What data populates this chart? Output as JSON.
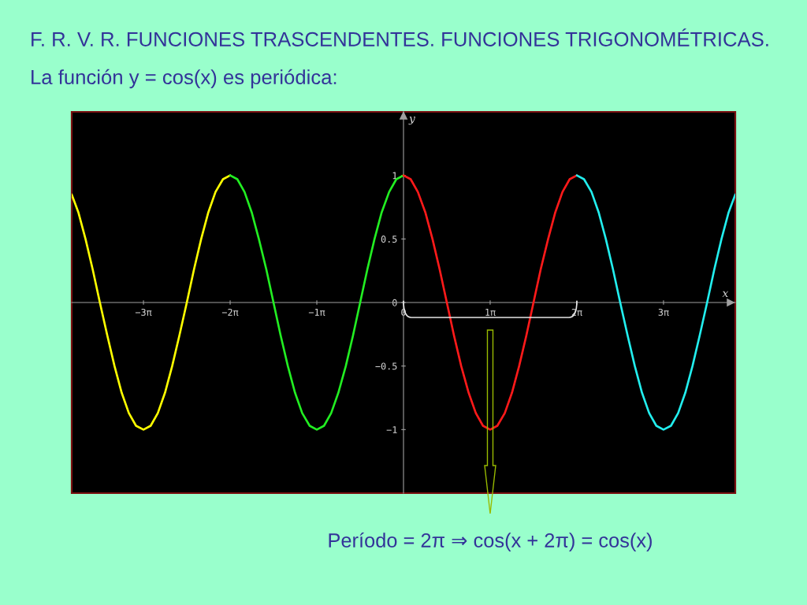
{
  "chart_data": {
    "type": "line",
    "title": "F. R. V. R. FUNCIONES TRASCENDENTES. FUNCIONES TRIGONOMÉTRICAS.",
    "subtitle": "La función y = cos(x) es periódica:",
    "xlabel": "x",
    "ylabel": "y",
    "annotations": [
      "Período = 2π ⇒ cos(x + 2π) = cos(x)"
    ],
    "series": [
      {
        "color": "#ffff00",
        "x": [
          -12.02,
          -11.78,
          -11.52,
          -11.26,
          -11.0,
          -10.73,
          -10.47,
          -10.21,
          -9.95,
          -9.69,
          -9.42,
          -9.16,
          -8.9,
          -8.64,
          -8.38,
          -8.12,
          -7.85,
          -7.59,
          -7.33,
          -7.07,
          -6.81,
          -6.54,
          -6.28
        ],
        "values": [
          0.85,
          0.71,
          0.5,
          0.26,
          0,
          -0.26,
          -0.5,
          -0.71,
          -0.87,
          -0.97,
          -1,
          -0.97,
          -0.87,
          -0.71,
          -0.5,
          -0.26,
          0,
          0.26,
          0.5,
          0.71,
          0.87,
          0.97,
          1
        ]
      },
      {
        "color": "#22ee22",
        "x": [
          -6.28,
          -6.02,
          -5.76,
          -5.5,
          -5.24,
          -4.97,
          -4.71,
          -4.45,
          -4.19,
          -3.93,
          -3.67,
          -3.4,
          -3.14,
          -2.88,
          -2.62,
          -2.36,
          -2.09,
          -1.83,
          -1.57,
          -1.31,
          -1.05,
          -0.79,
          -0.52,
          -0.26,
          0
        ],
        "values": [
          1,
          0.97,
          0.87,
          0.71,
          0.5,
          0.26,
          0,
          -0.26,
          -0.5,
          -0.71,
          -0.87,
          -0.97,
          -1,
          -0.97,
          -0.87,
          -0.71,
          -0.5,
          -0.26,
          0,
          0.26,
          0.5,
          0.71,
          0.87,
          0.97,
          1
        ]
      },
      {
        "color": "#ff1a1a",
        "x": [
          0,
          0.26,
          0.52,
          0.79,
          1.05,
          1.31,
          1.57,
          1.83,
          2.09,
          2.36,
          2.62,
          2.88,
          3.14,
          3.4,
          3.67,
          3.93,
          4.19,
          4.45,
          4.71,
          4.97,
          5.24,
          5.5,
          5.76,
          6.02,
          6.28
        ],
        "values": [
          1,
          0.97,
          0.87,
          0.71,
          0.5,
          0.26,
          0,
          -0.26,
          -0.5,
          -0.71,
          -0.87,
          -0.97,
          -1,
          -0.97,
          -0.87,
          -0.71,
          -0.5,
          -0.26,
          0,
          0.26,
          0.5,
          0.71,
          0.87,
          0.97,
          1
        ]
      },
      {
        "color": "#22eeee",
        "x": [
          6.28,
          6.54,
          6.81,
          7.07,
          7.33,
          7.59,
          7.85,
          8.12,
          8.38,
          8.64,
          8.9,
          9.16,
          9.42,
          9.69,
          9.95,
          10.21,
          10.47,
          10.73,
          11.0,
          11.26,
          11.52,
          11.78,
          12.02
        ],
        "values": [
          1,
          0.97,
          0.87,
          0.71,
          0.5,
          0.26,
          0,
          -0.26,
          -0.5,
          -0.71,
          -0.87,
          -0.97,
          -1,
          -0.97,
          -0.87,
          -0.71,
          -0.5,
          -0.26,
          0,
          0.26,
          0.5,
          0.71,
          0.85
        ]
      }
    ],
    "xlim": [
      -12.02,
      12.02
    ],
    "ylim": [
      -1.5,
      1.5
    ],
    "xticks": [
      {
        "value": -9.42,
        "label": "−3π"
      },
      {
        "value": -6.28,
        "label": "−2π"
      },
      {
        "value": -3.14,
        "label": "−1π"
      },
      0,
      {
        "value": 3.14,
        "label": "1π"
      },
      {
        "value": 6.28,
        "label": "2π"
      },
      {
        "value": 9.42,
        "label": "3π"
      }
    ],
    "yticks": [
      {
        "value": -1,
        "label": "−1"
      },
      {
        "value": -0.5,
        "label": "−0.5"
      },
      0,
      0.5,
      1
    ],
    "line_style": "solid"
  }
}
